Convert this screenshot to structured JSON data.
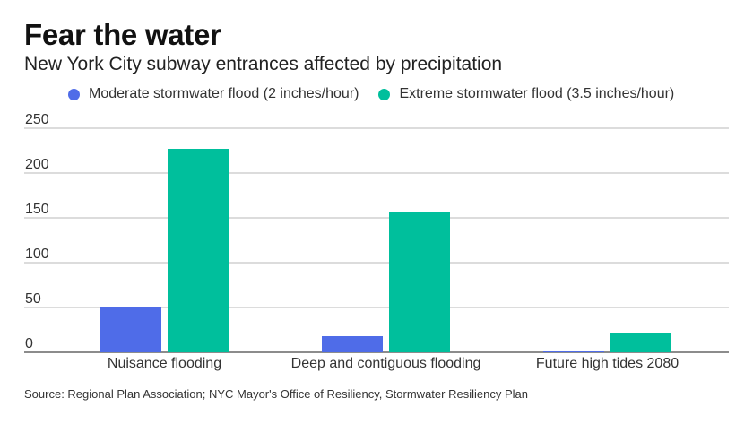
{
  "chart_data": {
    "type": "bar",
    "title": "Fear the water",
    "subtitle": "New York City subway entrances affected by precipitation",
    "categories": [
      "Nuisance flooding",
      "Deep and contiguous flooding",
      "Future high tides 2080"
    ],
    "series": [
      {
        "name": "Moderate stormwater flood (2 inches/hour)",
        "color": "#4f6ce8",
        "values": [
          51,
          18,
          1
        ]
      },
      {
        "name": "Extreme stormwater flood (3.5 inches/hour)",
        "color": "#00bf9c",
        "values": [
          227,
          156,
          21
        ]
      }
    ],
    "yticks": [
      0,
      50,
      100,
      150,
      200,
      250
    ],
    "ylim": [
      0,
      250
    ],
    "xlabel": "",
    "ylabel": "",
    "grid": true,
    "legend_position": "top",
    "source": "Source: Regional Plan Association; NYC Mayor's Office of Resiliency, Stormwater Resiliency Plan"
  }
}
